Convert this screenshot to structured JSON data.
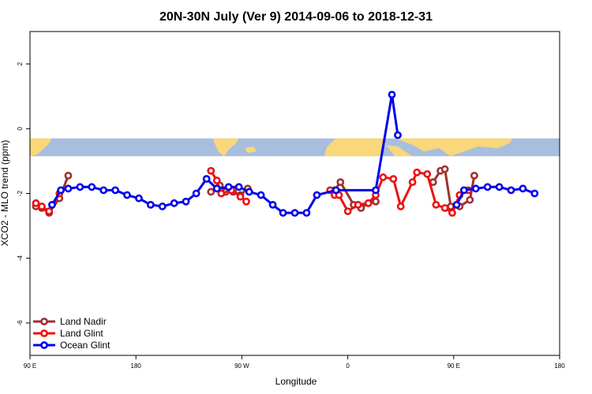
{
  "chart_data": {
    "type": "line",
    "title": "20N-30N July (Ver 9)   2014-09-06 to 2018-12-31",
    "xlabel": "Longitude",
    "ylabel": "XCO2 - MLO trend (ppm)",
    "xlim": [
      -90,
      270
    ],
    "ylim": [
      -7,
      3
    ],
    "x_ticks": [
      {
        "value": -90,
        "label": "90 E"
      },
      {
        "value": -18,
        "label": "180"
      },
      {
        "value": 54,
        "label": "90 W"
      },
      {
        "value": 126,
        "label": "0"
      },
      {
        "value": 198,
        "label": "90 E"
      },
      {
        "value": 270,
        "label": "180"
      }
    ],
    "y_ticks": [
      {
        "value": -6,
        "label": "-6"
      },
      {
        "value": -4,
        "label": "-4"
      },
      {
        "value": -2,
        "label": "-2"
      },
      {
        "value": 0,
        "label": "0"
      },
      {
        "value": 2,
        "label": "2"
      }
    ],
    "background_map_band": {
      "y_top": -0.3,
      "y_bottom": -0.85,
      "ocean_color": "#a7bedf",
      "land_color": "#f9d77a"
    },
    "legend_position": "bottom-left",
    "series": [
      {
        "name": "Land Nadir",
        "color": "#a03030",
        "segments": [
          [
            [
              -86,
              -2.4
            ],
            [
              -82,
              -2.45
            ],
            [
              -77,
              -2.6
            ],
            [
              -70,
              -2.15
            ],
            [
              -64,
              -1.45
            ]
          ],
          [
            [
              33,
              -1.95
            ],
            [
              39,
              -1.75
            ],
            [
              43,
              -1.95
            ],
            [
              48,
              -1.95
            ],
            [
              53,
              -2.05
            ],
            [
              58,
              -1.85
            ]
          ],
          [
            [
              117,
              -1.9
            ],
            [
              121,
              -1.65
            ],
            [
              130,
              -2.35
            ],
            [
              135,
              -2.45
            ],
            [
              140,
              -2.3
            ],
            [
              145,
              -2.25
            ]
          ],
          [
            [
              184,
              -1.65
            ],
            [
              189,
              -1.3
            ],
            [
              192,
              -1.25
            ],
            [
              196,
              -2.4
            ],
            [
              202,
              -2.4
            ],
            [
              209,
              -2.2
            ],
            [
              212,
              -1.45
            ]
          ]
        ]
      },
      {
        "name": "Land Glint",
        "color": "#ee1111",
        "segments": [
          [
            [
              -86,
              -2.3
            ],
            [
              -82,
              -2.4
            ],
            [
              -77,
              -2.55
            ],
            [
              -70,
              -2.0
            ]
          ],
          [
            [
              33,
              -1.3
            ],
            [
              37,
              -1.6
            ],
            [
              40,
              -2.0
            ],
            [
              47,
              -1.9
            ],
            [
              53,
              -2.1
            ],
            [
              57,
              -2.25
            ]
          ],
          [
            [
              114,
              -1.9
            ],
            [
              117,
              -2.05
            ],
            [
              120,
              -2.05
            ],
            [
              126,
              -2.55
            ],
            [
              133,
              -2.35
            ],
            [
              140,
              -2.3
            ],
            [
              145,
              -2.05
            ],
            [
              150,
              -1.5
            ],
            [
              157,
              -1.55
            ],
            [
              162,
              -2.4
            ],
            [
              170,
              -1.65
            ],
            [
              173,
              -1.35
            ],
            [
              180,
              -1.4
            ],
            [
              186,
              -2.35
            ],
            [
              192,
              -2.45
            ],
            [
              197,
              -2.6
            ],
            [
              202,
              -2.05
            ],
            [
              208,
              -1.9
            ]
          ]
        ]
      },
      {
        "name": "Ocean Glint",
        "color": "#0000ee",
        "segments": [
          [
            [
              -75,
              -2.35
            ],
            [
              -69,
              -1.9
            ],
            [
              -64,
              -1.85
            ],
            [
              -56,
              -1.8
            ],
            [
              -48,
              -1.8
            ],
            [
              -40,
              -1.9
            ],
            [
              -32,
              -1.9
            ],
            [
              -24,
              -2.05
            ],
            [
              -16,
              -2.15
            ],
            [
              -8,
              -2.35
            ],
            [
              0,
              -2.4
            ],
            [
              8,
              -2.3
            ],
            [
              16,
              -2.25
            ],
            [
              23,
              -2.0
            ],
            [
              30,
              -1.55
            ],
            [
              37,
              -1.85
            ],
            [
              45,
              -1.8
            ],
            [
              52,
              -1.8
            ],
            [
              59,
              -1.95
            ],
            [
              67,
              -2.05
            ],
            [
              75,
              -2.35
            ],
            [
              82,
              -2.6
            ],
            [
              90,
              -2.6
            ],
            [
              98,
              -2.6
            ],
            [
              105,
              -2.05
            ],
            [
              118,
              -1.9
            ],
            [
              145,
              -1.9
            ],
            [
              156,
              1.05
            ],
            [
              160,
              -0.2
            ]
          ],
          [
            [
              200,
              -2.35
            ],
            [
              205,
              -1.9
            ],
            [
              213,
              -1.85
            ],
            [
              221,
              -1.8
            ],
            [
              229,
              -1.8
            ],
            [
              237,
              -1.9
            ],
            [
              245,
              -1.85
            ],
            [
              253,
              -2.0
            ]
          ]
        ]
      }
    ]
  }
}
